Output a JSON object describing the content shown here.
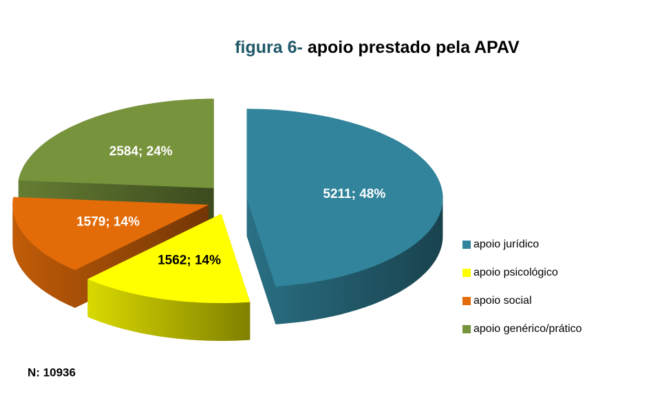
{
  "chart_data": {
    "type": "pie3d",
    "title": [
      "figura 6-",
      "apoio prestado pela APAV"
    ],
    "categories": [
      "apoio jurídico",
      "apoio psicológico",
      "apoio social",
      "apoio genérico/prático"
    ],
    "values": [
      5211,
      1562,
      1579,
      2584
    ],
    "value_labels": [
      "5211; 48%",
      "1562; 14%",
      "1579; 14%",
      "2584; 24%"
    ],
    "colors": [
      "#31849b",
      "#ffff00",
      "#e36c09",
      "#77933c"
    ],
    "legend": "right",
    "annotation": "N: 10936"
  }
}
